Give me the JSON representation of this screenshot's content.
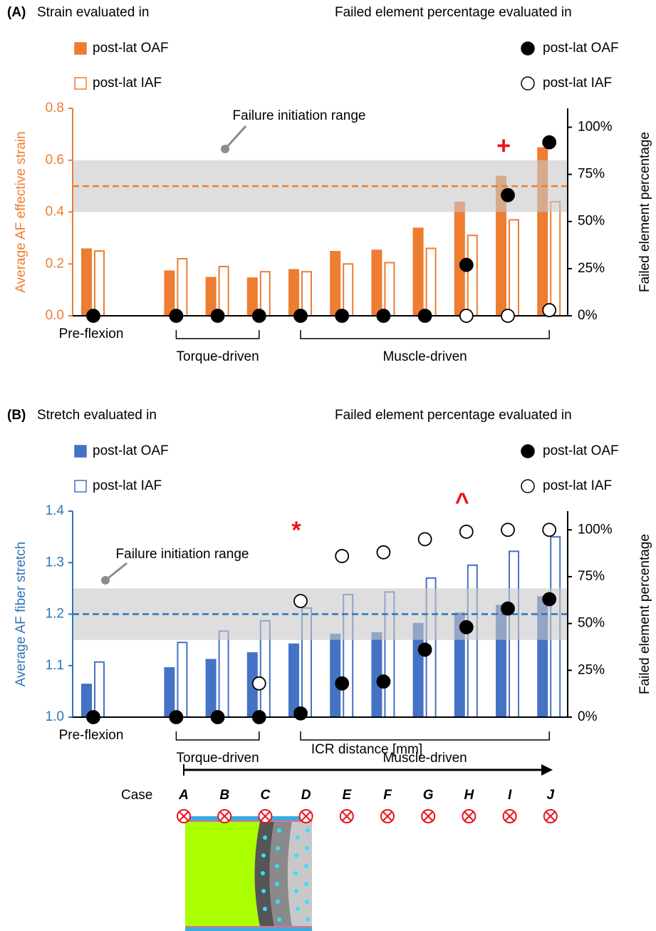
{
  "chart_data": [
    {
      "type": "bar",
      "panel": "(A)",
      "legend_left_title": "Strain evaluated in",
      "legend_right_title": "Failed element percentage evaluated in",
      "ylabel": "Average AF effective strain",
      "y2label": "Failed element percentage",
      "axis_color": "#ed7d31",
      "categories": [
        "Pre-flexion",
        null,
        null,
        null,
        null,
        null,
        null,
        null,
        null,
        null,
        null
      ],
      "groups": [
        {
          "label": "Torque-driven",
          "start": 1,
          "end": 3
        },
        {
          "label": "Muscle-driven",
          "start": 4,
          "end": 10
        }
      ],
      "series": [
        {
          "name": "post-lat OAF",
          "color": "#ed7d31",
          "style": "filled",
          "values": [
            0.26,
            0.175,
            0.15,
            0.148,
            0.18,
            0.25,
            0.255,
            0.34,
            0.44,
            0.54,
            0.65
          ]
        },
        {
          "name": "post-lat IAF",
          "color": "#ed7d31",
          "style": "hollow",
          "values": [
            0.25,
            0.22,
            0.19,
            0.17,
            0.17,
            0.2,
            0.205,
            0.26,
            0.31,
            0.37,
            0.44
          ]
        },
        {
          "name": "post-lat OAF",
          "color": "#000000",
          "style": "filled",
          "axis": "y2",
          "type": "scatter",
          "values": [
            0,
            0,
            0,
            0,
            0,
            0,
            0,
            0,
            27,
            64,
            92
          ]
        },
        {
          "name": "post-lat IAF",
          "color": "#000000",
          "style": "hollow",
          "axis": "y2",
          "type": "scatter",
          "values": [
            null,
            null,
            null,
            null,
            null,
            null,
            null,
            null,
            0,
            0,
            3
          ]
        }
      ],
      "ylim": [
        0,
        0.8
      ],
      "yticks": [
        {
          "value": 0,
          "label": "0.0"
        },
        0.2,
        0.4,
        0.6,
        0.8
      ],
      "y2lim": [
        0,
        110
      ],
      "y2ticks": [
        {
          "value": 0,
          "label": "0%"
        },
        {
          "value": 25,
          "label": "25%"
        },
        {
          "value": 50,
          "label": "50%"
        },
        {
          "value": 75,
          "label": "75%"
        },
        {
          "value": 100,
          "label": "100%"
        }
      ],
      "band": {
        "label": "Failure initiation range",
        "range": [
          0.4,
          0.6
        ],
        "line": 0.5
      },
      "annotations": [
        {
          "text": "+",
          "category": 9,
          "y": 0.65
        }
      ]
    },
    {
      "type": "bar",
      "panel": "(B)",
      "legend_left_title": "Stretch evaluated in",
      "legend_right_title": "Failed element percentage evaluated in",
      "ylabel": "Average AF fiber stretch",
      "y2label": "Failed element percentage",
      "axis_color": "#2e75b6",
      "categories": [
        "Pre-flexion",
        null,
        null,
        null,
        null,
        null,
        null,
        null,
        null,
        null,
        null
      ],
      "groups": [
        {
          "label": "Torque-driven",
          "start": 1,
          "end": 3
        },
        {
          "label": "Muscle-driven",
          "start": 4,
          "end": 10
        }
      ],
      "series": [
        {
          "name": "post-lat OAF",
          "color": "#4472c4",
          "style": "filled",
          "values": [
            1.065,
            1.097,
            1.113,
            1.126,
            1.143,
            1.162,
            1.165,
            1.183,
            1.203,
            1.218,
            1.235
          ]
        },
        {
          "name": "post-lat IAF",
          "color": "#4472c4",
          "style": "hollow",
          "values": [
            1.107,
            1.145,
            1.167,
            1.187,
            1.212,
            1.238,
            1.243,
            1.27,
            1.295,
            1.322,
            1.35
          ]
        },
        {
          "name": "post-lat OAF",
          "color": "#000000",
          "style": "filled",
          "axis": "y2",
          "type": "scatter",
          "values": [
            0,
            0,
            0,
            0,
            2,
            18,
            19,
            36,
            48,
            58,
            63
          ]
        },
        {
          "name": "post-lat IAF",
          "color": "#000000",
          "style": "hollow",
          "axis": "y2",
          "type": "scatter",
          "values": [
            null,
            null,
            null,
            18,
            62,
            86,
            88,
            95,
            99,
            100,
            100
          ]
        }
      ],
      "ylim": [
        1,
        1.4
      ],
      "yticks": [
        {
          "value": 1,
          "label": "1.0"
        },
        1.1,
        1.2,
        1.3,
        1.4
      ],
      "y2lim": [
        0,
        110
      ],
      "y2ticks": [
        {
          "value": 0,
          "label": "0%"
        },
        {
          "value": 25,
          "label": "25%"
        },
        {
          "value": 50,
          "label": "50%"
        },
        {
          "value": 75,
          "label": "75%"
        },
        {
          "value": 100,
          "label": "100%"
        }
      ],
      "band": {
        "label": "Failure initiation range",
        "range": [
          1.15,
          1.25
        ],
        "line": 1.2
      },
      "annotations": [
        {
          "text": "*",
          "category": 4,
          "y": 1.36
        },
        {
          "text": "^",
          "category": 8,
          "y": 1.415
        }
      ]
    }
  ],
  "case_diagram": {
    "axis_label": "ICR distance [mm]",
    "row_label": "Case",
    "cases": [
      "A",
      "B",
      "C",
      "D",
      "E",
      "F",
      "G",
      "H",
      "I",
      "J"
    ]
  }
}
